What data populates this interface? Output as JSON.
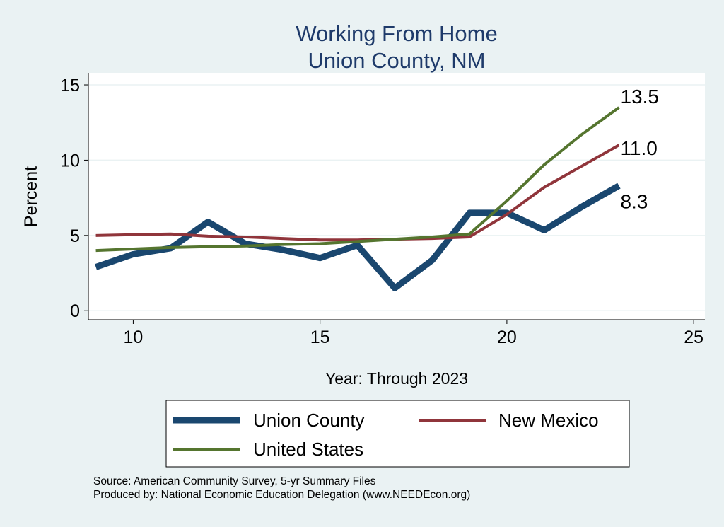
{
  "chart_data": {
    "type": "line",
    "title": "Working From Home",
    "subtitle": "Union County, NM",
    "xlabel": "Year: Through 2023",
    "ylabel": "Percent",
    "xlim": [
      8.8,
      25.3
    ],
    "ylim": [
      -0.6,
      15.8
    ],
    "xticks": [
      10,
      15,
      20,
      25
    ],
    "yticks": [
      0,
      5,
      10,
      15
    ],
    "grid": true,
    "legend_placement": "bottom",
    "x": [
      9,
      10,
      11,
      12,
      13,
      14,
      15,
      16,
      17,
      18,
      19,
      20,
      21,
      22,
      23
    ],
    "series": [
      {
        "name": "Union County",
        "color": "#1a476f",
        "width": 9,
        "values": [
          2.9,
          3.75,
          4.15,
          5.9,
          4.45,
          4.05,
          3.5,
          4.35,
          1.5,
          3.35,
          6.5,
          6.5,
          5.35,
          6.9,
          8.3
        ],
        "end_label": "8.3"
      },
      {
        "name": "New Mexico",
        "color": "#90353b",
        "width": 4,
        "values": [
          5.0,
          5.05,
          5.1,
          4.95,
          4.9,
          4.8,
          4.7,
          4.7,
          4.75,
          4.8,
          4.9,
          6.4,
          8.2,
          9.6,
          11.0
        ],
        "end_label": "11.0"
      },
      {
        "name": "United States",
        "color": "#55752f",
        "width": 4,
        "values": [
          4.0,
          4.1,
          4.2,
          4.25,
          4.3,
          4.4,
          4.45,
          4.6,
          4.75,
          4.9,
          5.1,
          7.3,
          9.7,
          11.7,
          13.5
        ],
        "end_label": "13.5"
      }
    ]
  },
  "footer": {
    "source": "Source: American Community Survey, 5-yr Summary Files",
    "produced": "Produced by: National Economic Education Delegation (www.NEEDEcon.org)"
  }
}
